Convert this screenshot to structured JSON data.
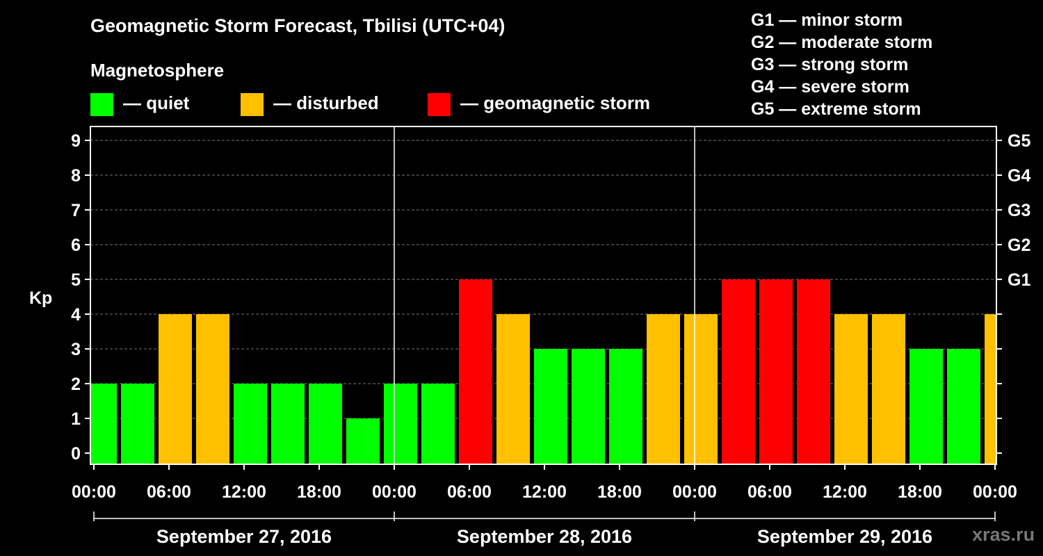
{
  "title": "Geomagnetic Storm Forecast, Tbilisi (UTC+04)",
  "magnetosphere": {
    "title": "Magnetosphere",
    "items": [
      {
        "label": "— quiet",
        "color": "#00ff00"
      },
      {
        "label": "— disturbed",
        "color": "#ffc000"
      },
      {
        "label": "— geomagnetic storm",
        "color": "#ff0000"
      }
    ]
  },
  "storm_scale": [
    "G1 — minor storm",
    "G2 — moderate storm",
    "G3 — strong storm",
    "G4 — severe storm",
    "G5 — extreme storm"
  ],
  "watermark": "xras.ru",
  "chart_data": {
    "type": "bar",
    "ylabel": "Kp",
    "ylim": [
      0,
      9
    ],
    "yticks": [
      0,
      1,
      2,
      3,
      4,
      5,
      6,
      7,
      8,
      9
    ],
    "right_axis": [
      {
        "kp": 5,
        "label": "G1"
      },
      {
        "kp": 6,
        "label": "G2"
      },
      {
        "kp": 7,
        "label": "G3"
      },
      {
        "kp": 8,
        "label": "G4"
      },
      {
        "kp": 9,
        "label": "G5"
      }
    ],
    "x_tick_labels": [
      "00:00",
      "06:00",
      "12:00",
      "18:00",
      "00:00",
      "06:00",
      "12:00",
      "18:00",
      "00:00",
      "06:00",
      "12:00",
      "18:00",
      "00:00"
    ],
    "days": [
      "September 27, 2016",
      "September 28, 2016",
      "September 29, 2016"
    ],
    "grid": "dashed horizontal",
    "color_scale": {
      "quiet": "#00ff00",
      "disturbed": "#ffc000",
      "storm": "#ff0000"
    },
    "interval_hours": 3,
    "start_hour": -1,
    "values": [
      2,
      2,
      4,
      4,
      2,
      2,
      2,
      1,
      2,
      2,
      5,
      4,
      3,
      3,
      3,
      4,
      4,
      5,
      5,
      5,
      4,
      4,
      3,
      3,
      4
    ]
  }
}
